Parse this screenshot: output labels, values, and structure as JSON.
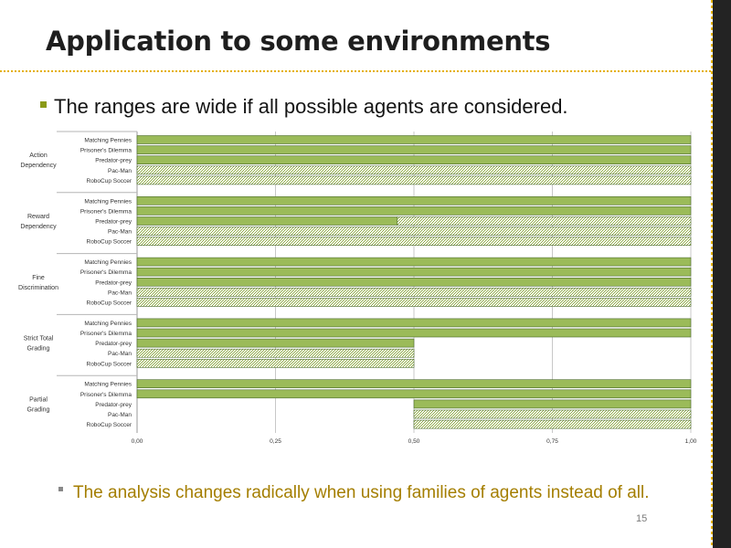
{
  "slide": {
    "title": "Application to some environments",
    "bullet1": "The ranges are wide if all possible agents are considered.",
    "bullet2": "The analysis changes radically when using families of agents instead of all.",
    "page_number": "15"
  },
  "chart_data": {
    "type": "bar",
    "orientation": "horizontal",
    "xlim": [
      0,
      1
    ],
    "ticks": [
      "0,00",
      "0,25",
      "0,50",
      "0,75",
      "1,00"
    ],
    "grid": true,
    "groups": [
      {
        "name": "Action Dependency",
        "lines": [
          "Action",
          "Dependency"
        ],
        "bars": [
          {
            "category": "Matching Pennies",
            "start": 0,
            "end": 1,
            "style": "solid"
          },
          {
            "category": "Prisoner's Dilemma",
            "start": 0,
            "end": 1,
            "style": "solid"
          },
          {
            "category": "Predator-prey",
            "start": 0,
            "end": 1,
            "style": "solid"
          },
          {
            "category": "Pac-Man",
            "start": 0,
            "end": 1,
            "style": "hatched"
          },
          {
            "category": "RoboCup Soccer",
            "start": 0,
            "end": 1,
            "style": "hatched"
          }
        ]
      },
      {
        "name": "Reward Dependency",
        "lines": [
          "Reward",
          "Dependency"
        ],
        "bars": [
          {
            "category": "Matching Pennies",
            "start": 0,
            "end": 1,
            "style": "solid"
          },
          {
            "category": "Prisoner's Dilemma",
            "start": 0,
            "end": 1,
            "style": "solid"
          },
          {
            "category": "Predator-prey",
            "start": 0,
            "end": 0.47,
            "style": "solid",
            "rest_end": 1,
            "rest_style": "hatched"
          },
          {
            "category": "Pac-Man",
            "start": 0,
            "end": 1,
            "style": "hatched"
          },
          {
            "category": "RoboCup Soccer",
            "start": 0,
            "end": 1,
            "style": "hatched"
          }
        ]
      },
      {
        "name": "Fine Discrimination",
        "lines": [
          "Fine",
          "Discrimination"
        ],
        "bars": [
          {
            "category": "Matching Pennies",
            "start": 0,
            "end": 1,
            "style": "solid"
          },
          {
            "category": "Prisoner's Dilemma",
            "start": 0,
            "end": 1,
            "style": "solid"
          },
          {
            "category": "Predator-prey",
            "start": 0,
            "end": 1,
            "style": "solid"
          },
          {
            "category": "Pac-Man",
            "start": 0,
            "end": 1,
            "style": "hatched"
          },
          {
            "category": "RoboCup Soccer",
            "start": 0,
            "end": 1,
            "style": "hatched"
          }
        ]
      },
      {
        "name": "Strict Total Grading",
        "lines": [
          "Strict Total",
          "Grading"
        ],
        "bars": [
          {
            "category": "Matching Pennies",
            "start": 0,
            "end": 1,
            "style": "solid"
          },
          {
            "category": "Prisoner's Dilemma",
            "start": 0,
            "end": 1,
            "style": "solid"
          },
          {
            "category": "Predator-prey",
            "start": 0,
            "end": 0.5,
            "style": "solid"
          },
          {
            "category": "Pac-Man",
            "start": 0,
            "end": 0.5,
            "style": "hatched"
          },
          {
            "category": "RoboCup Soccer",
            "start": 0,
            "end": 0.5,
            "style": "hatched"
          }
        ]
      },
      {
        "name": "Partial Grading",
        "lines": [
          "Partial",
          "Grading"
        ],
        "bars": [
          {
            "category": "Matching Pennies",
            "start": 0,
            "end": 1,
            "style": "solid"
          },
          {
            "category": "Prisoner's Dilemma",
            "start": 0,
            "end": 1,
            "style": "solid"
          },
          {
            "category": "Predator-prey",
            "start": 0.5,
            "end": 1,
            "style": "solid"
          },
          {
            "category": "Pac-Man",
            "start": 0.5,
            "end": 1,
            "style": "hatched"
          },
          {
            "category": "RoboCup Soccer",
            "start": 0.5,
            "end": 1,
            "style": "hatched"
          }
        ]
      }
    ],
    "colors": {
      "bar": "#9bbb59",
      "bar_edge": "#4a6a2a",
      "hatch": "#8aa63e",
      "grid": "#c8c8c8"
    }
  }
}
